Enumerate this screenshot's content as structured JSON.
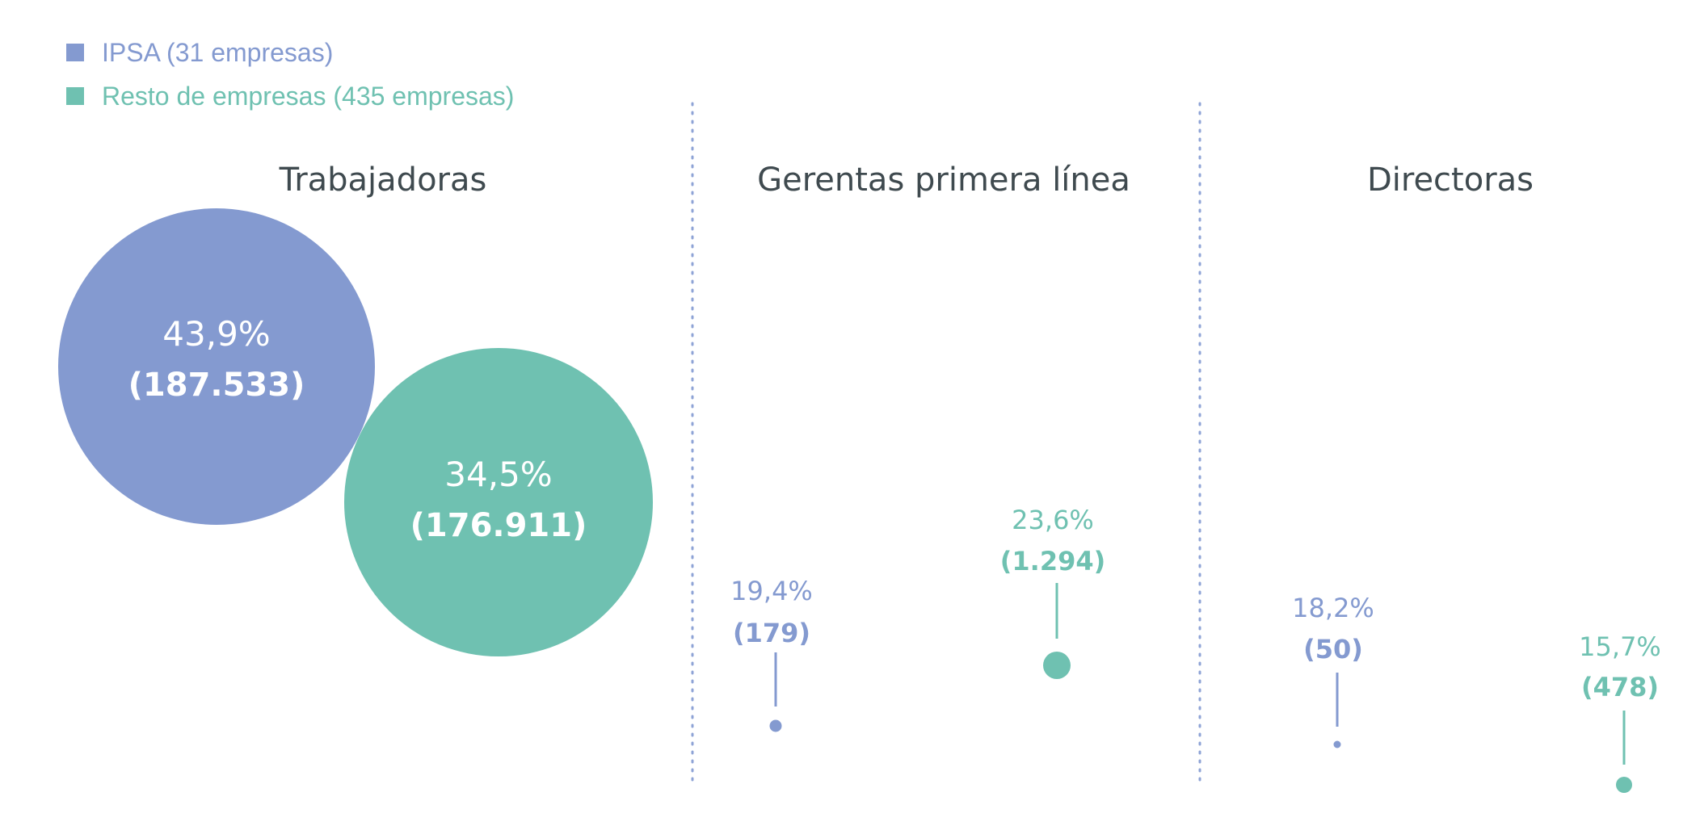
{
  "colors": {
    "ipsa": "#849ad0",
    "resto": "#6fc1b1",
    "title": "#3f4a4f",
    "divider": "#8ea3d6"
  },
  "legend": [
    {
      "label": "IPSA (31 empresas)",
      "color": "#849ad0"
    },
    {
      "label": "Resto de empresas (435 empresas)",
      "color": "#6fc1b1"
    }
  ],
  "chart_data": {
    "type": "bubble",
    "series_names": [
      "IPSA (31 empresas)",
      "Resto de empresas (435 empresas)"
    ],
    "panels": [
      {
        "title": "Trabajadoras",
        "points": [
          {
            "series": "ipsa",
            "percent": "43,9%",
            "count": "(187.533)",
            "value": 187533
          },
          {
            "series": "resto",
            "percent": "34,5%",
            "count": "(176.911)",
            "value": 176911
          }
        ]
      },
      {
        "title": "Gerentas primera línea",
        "points": [
          {
            "series": "ipsa",
            "percent": "19,4%",
            "count": "(179)",
            "value": 179
          },
          {
            "series": "resto",
            "percent": "23,6%",
            "count": "(1.294)",
            "value": 1294
          }
        ]
      },
      {
        "title": "Directoras",
        "points": [
          {
            "series": "ipsa",
            "percent": "18,2%",
            "count": "(50)",
            "value": 50
          },
          {
            "series": "resto",
            "percent": "15,7%",
            "count": "(478)",
            "value": 478
          }
        ]
      }
    ]
  }
}
